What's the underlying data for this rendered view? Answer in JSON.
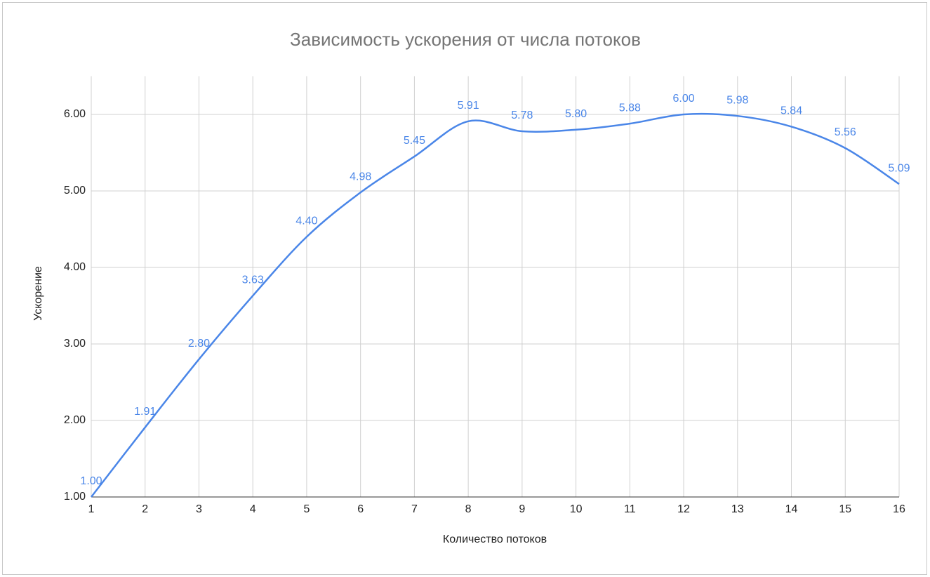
{
  "chart_data": {
    "type": "line",
    "title": "Зависимость ускорения от числа потоков",
    "x_label": "Количество потоков",
    "y_label": "Ускорение",
    "x": [
      1,
      2,
      3,
      4,
      5,
      6,
      7,
      8,
      9,
      10,
      11,
      12,
      13,
      14,
      15,
      16
    ],
    "series": [
      {
        "name": "Ускорение",
        "color": "#4a86e8",
        "smooth": true,
        "values": [
          1.0,
          1.91,
          2.8,
          3.63,
          4.4,
          4.98,
          5.45,
          5.91,
          5.78,
          5.8,
          5.88,
          6.0,
          5.98,
          5.84,
          5.56,
          5.09
        ],
        "value_labels": [
          "1.00",
          "1.91",
          "2.80",
          "3.63",
          "4.40",
          "4.98",
          "5.45",
          "5.91",
          "5.78",
          "5.80",
          "5.88",
          "6.00",
          "5.98",
          "5.84",
          "5.56",
          "5.09"
        ]
      }
    ],
    "xlim": [
      1,
      16
    ],
    "xticks": [
      1,
      2,
      3,
      4,
      5,
      6,
      7,
      8,
      9,
      10,
      11,
      12,
      13,
      14,
      15,
      16
    ],
    "ylim": [
      1,
      6.5
    ],
    "yticks": [
      {
        "value": 1,
        "label": "1.00"
      },
      {
        "value": 2,
        "label": "2.00"
      },
      {
        "value": 3,
        "label": "3.00"
      },
      {
        "value": 4,
        "label": "4.00"
      },
      {
        "value": 5,
        "label": "5.00"
      },
      {
        "value": 6,
        "label": "6.00"
      }
    ],
    "grid": true
  }
}
